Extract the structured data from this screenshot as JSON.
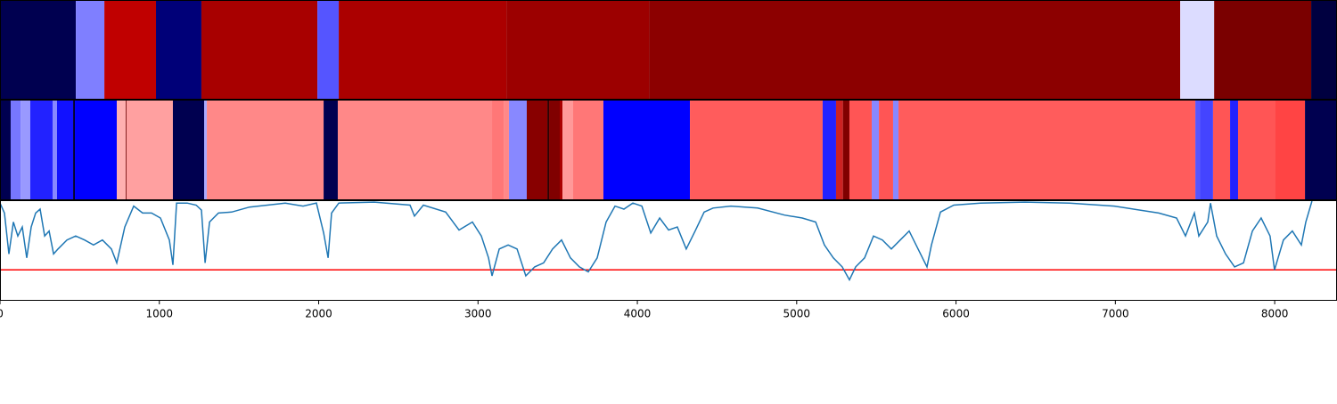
{
  "chart_data": [
    {
      "type": "segments",
      "xlim": [
        0,
        8391
      ],
      "segments": [
        {
          "start": 0,
          "end": 476,
          "color": "#000050"
        },
        {
          "start": 476,
          "end": 655,
          "color": "#7f7fff"
        },
        {
          "start": 655,
          "end": 979,
          "color": "#c00000"
        },
        {
          "start": 979,
          "end": 1264,
          "color": "#000078"
        },
        {
          "start": 1264,
          "end": 1992,
          "color": "#a80000"
        },
        {
          "start": 1992,
          "end": 2126,
          "color": "#5555ff"
        },
        {
          "start": 2126,
          "end": 3178,
          "color": "#ab0000"
        },
        {
          "start": 3178,
          "end": 4073,
          "color": "#9c0000"
        },
        {
          "start": 4073,
          "end": 7407,
          "color": "#8c0000"
        },
        {
          "start": 7407,
          "end": 7620,
          "color": "#dcdcff"
        },
        {
          "start": 7620,
          "end": 8229,
          "color": "#7a0000"
        },
        {
          "start": 8229,
          "end": 8391,
          "color": "#000040"
        }
      ]
    },
    {
      "type": "segments",
      "xlim": [
        0,
        8391
      ],
      "segments": [
        {
          "start": 0,
          "end": 67,
          "color": "#000050"
        },
        {
          "start": 67,
          "end": 129,
          "color": "#7777ff"
        },
        {
          "start": 129,
          "end": 190,
          "color": "#9999ff"
        },
        {
          "start": 190,
          "end": 330,
          "color": "#2222ff"
        },
        {
          "start": 330,
          "end": 358,
          "color": "#8888ff"
        },
        {
          "start": 358,
          "end": 459,
          "color": "#1111ff"
        },
        {
          "start": 459,
          "end": 470,
          "color": "#000030"
        },
        {
          "start": 470,
          "end": 733,
          "color": "#0000ff"
        },
        {
          "start": 733,
          "end": 789,
          "color": "#ffb0b0"
        },
        {
          "start": 789,
          "end": 794,
          "color": "#700000"
        },
        {
          "start": 794,
          "end": 1085,
          "color": "#ffa0a0"
        },
        {
          "start": 1085,
          "end": 1281,
          "color": "#000050"
        },
        {
          "start": 1281,
          "end": 1298,
          "color": "#aaaaff"
        },
        {
          "start": 1298,
          "end": 2031,
          "color": "#ff8888"
        },
        {
          "start": 2031,
          "end": 2120,
          "color": "#000050"
        },
        {
          "start": 2120,
          "end": 3088,
          "color": "#ff8888"
        },
        {
          "start": 3088,
          "end": 3161,
          "color": "#ff7777"
        },
        {
          "start": 3161,
          "end": 3194,
          "color": "#ff8888"
        },
        {
          "start": 3194,
          "end": 3306,
          "color": "#8888ff"
        },
        {
          "start": 3306,
          "end": 3435,
          "color": "#880000"
        },
        {
          "start": 3435,
          "end": 3446,
          "color": "#300000"
        },
        {
          "start": 3446,
          "end": 3513,
          "color": "#800000"
        },
        {
          "start": 3513,
          "end": 3530,
          "color": "#aa0000"
        },
        {
          "start": 3530,
          "end": 3597,
          "color": "#ff9999"
        },
        {
          "start": 3597,
          "end": 3787,
          "color": "#ff7777"
        },
        {
          "start": 3787,
          "end": 4330,
          "color": "#0000ff"
        },
        {
          "start": 4330,
          "end": 5163,
          "color": "#ff5c5c"
        },
        {
          "start": 5163,
          "end": 5247,
          "color": "#2222ff"
        },
        {
          "start": 5247,
          "end": 5290,
          "color": "#cc2222"
        },
        {
          "start": 5290,
          "end": 5331,
          "color": "#800000"
        },
        {
          "start": 5331,
          "end": 5471,
          "color": "#ff5555"
        },
        {
          "start": 5471,
          "end": 5516,
          "color": "#8888ff"
        },
        {
          "start": 5516,
          "end": 5605,
          "color": "#ff5555"
        },
        {
          "start": 5605,
          "end": 5639,
          "color": "#8888ff"
        },
        {
          "start": 5639,
          "end": 7502,
          "color": "#ff5c5c"
        },
        {
          "start": 7502,
          "end": 7530,
          "color": "#5555ff"
        },
        {
          "start": 7530,
          "end": 7613,
          "color": "#4444ff"
        },
        {
          "start": 7613,
          "end": 7720,
          "color": "#ff5555"
        },
        {
          "start": 7720,
          "end": 7770,
          "color": "#2222ff"
        },
        {
          "start": 7770,
          "end": 8005,
          "color": "#ff5555"
        },
        {
          "start": 8005,
          "end": 8190,
          "color": "#ff4444"
        },
        {
          "start": 8190,
          "end": 8391,
          "color": "#000050"
        }
      ]
    },
    {
      "type": "line",
      "xlim": [
        0,
        8391
      ],
      "ylim": [
        0,
        1
      ],
      "color": "#1f77b4",
      "xticks": [
        0,
        1000,
        2000,
        3000,
        4000,
        5000,
        6000,
        7000,
        8000
      ],
      "threshold": {
        "value": 0.31,
        "color": "#ff0000"
      },
      "x": [
        0,
        28,
        56,
        84,
        112,
        140,
        168,
        196,
        224,
        252,
        280,
        308,
        336,
        364,
        420,
        475,
        531,
        587,
        643,
        699,
        733,
        783,
        839,
        895,
        951,
        1007,
        1063,
        1085,
        1108,
        1175,
        1231,
        1264,
        1287,
        1315,
        1371,
        1454,
        1566,
        1678,
        1790,
        1902,
        1986,
        2031,
        2059,
        2081,
        2126,
        2349,
        2573,
        2601,
        2657,
        2797,
        2881,
        2965,
        3021,
        3066,
        3088,
        3133,
        3189,
        3245,
        3300,
        3356,
        3412,
        3468,
        3524,
        3580,
        3636,
        3692,
        3748,
        3804,
        3860,
        3916,
        3972,
        4028,
        4084,
        4140,
        4196,
        4251,
        4307,
        4363,
        4419,
        4475,
        4587,
        4755,
        4923,
        5035,
        5119,
        5174,
        5230,
        5286,
        5331,
        5370,
        5426,
        5482,
        5538,
        5594,
        5650,
        5706,
        5762,
        5818,
        5846,
        5902,
        5986,
        6153,
        6433,
        6713,
        6993,
        7272,
        7384,
        7440,
        7496,
        7524,
        7580,
        7597,
        7636,
        7692,
        7748,
        7804,
        7860,
        7915,
        7971,
        7999,
        8055,
        8111,
        8167,
        8195,
        8234
      ],
      "values": [
        0.98,
        0.88,
        0.47,
        0.79,
        0.65,
        0.74,
        0.43,
        0.74,
        0.88,
        0.92,
        0.65,
        0.7,
        0.47,
        0.52,
        0.61,
        0.65,
        0.61,
        0.56,
        0.61,
        0.52,
        0.38,
        0.74,
        0.95,
        0.88,
        0.88,
        0.83,
        0.61,
        0.36,
        0.98,
        0.98,
        0.96,
        0.91,
        0.38,
        0.79,
        0.88,
        0.89,
        0.94,
        0.96,
        0.98,
        0.95,
        0.98,
        0.68,
        0.43,
        0.88,
        0.98,
        0.99,
        0.96,
        0.85,
        0.96,
        0.89,
        0.71,
        0.79,
        0.65,
        0.43,
        0.25,
        0.52,
        0.56,
        0.52,
        0.25,
        0.34,
        0.38,
        0.52,
        0.61,
        0.43,
        0.34,
        0.29,
        0.43,
        0.79,
        0.95,
        0.92,
        0.98,
        0.95,
        0.68,
        0.83,
        0.71,
        0.74,
        0.52,
        0.7,
        0.89,
        0.93,
        0.95,
        0.93,
        0.86,
        0.83,
        0.79,
        0.56,
        0.43,
        0.34,
        0.21,
        0.34,
        0.43,
        0.65,
        0.61,
        0.52,
        0.61,
        0.7,
        0.52,
        0.34,
        0.56,
        0.89,
        0.96,
        0.98,
        0.99,
        0.98,
        0.95,
        0.88,
        0.83,
        0.65,
        0.88,
        0.65,
        0.79,
        0.98,
        0.65,
        0.47,
        0.34,
        0.38,
        0.7,
        0.83,
        0.65,
        0.31,
        0.61,
        0.7,
        0.56,
        0.79,
        1.0
      ]
    }
  ]
}
